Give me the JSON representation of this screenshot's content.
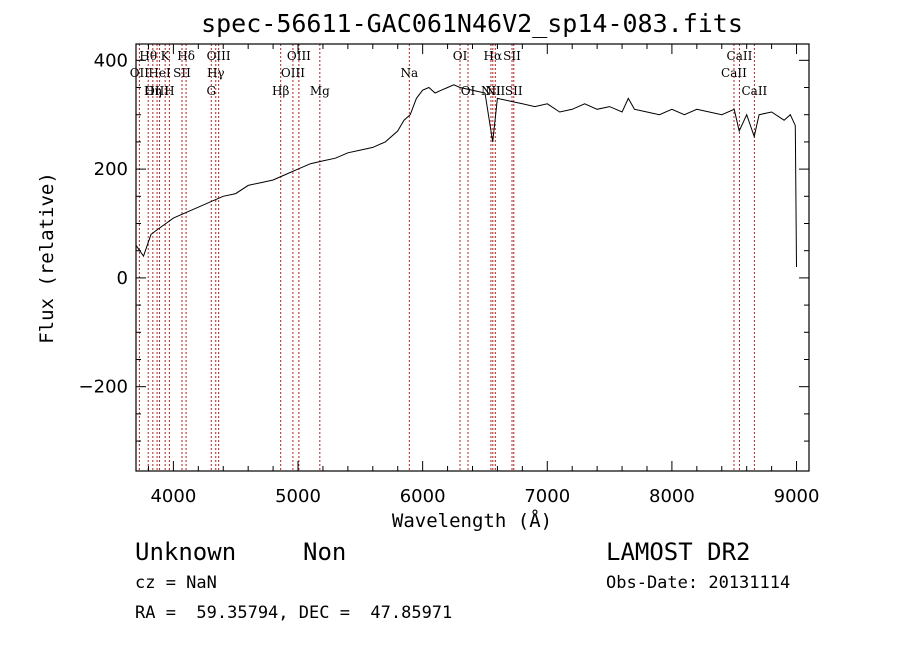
{
  "chart_data": {
    "type": "line",
    "title": "spec-56611-GAC061N46V2_sp14-083.fits",
    "xlabel": "Wavelength (Å)",
    "ylabel": "Flux (relative)",
    "xlim": [
      3700,
      9100
    ],
    "ylim": [
      -355,
      430
    ],
    "x_ticks": [
      4000,
      5000,
      6000,
      7000,
      8000,
      9000
    ],
    "y_ticks": [
      -200,
      0,
      200,
      400
    ],
    "grid": false,
    "line_color": "#000000",
    "marker_color": "#b22222",
    "series": [
      {
        "x": [
          3700,
          3760,
          3820,
          3880,
          3940,
          4000,
          4100,
          4200,
          4300,
          4400,
          4500,
          4600,
          4700,
          4800,
          4900,
          5000,
          5100,
          5200,
          5300,
          5400,
          5500,
          5600,
          5700,
          5800,
          5850,
          5900,
          5950,
          6000,
          6050,
          6100,
          6150,
          6200,
          6250,
          6300,
          6400,
          6500,
          6562,
          6600,
          6700,
          6800,
          6900,
          7000,
          7100,
          7200,
          7300,
          7400,
          7500,
          7600,
          7650,
          7700,
          7800,
          7900,
          8000,
          8100,
          8200,
          8300,
          8400,
          8500,
          8540,
          8600,
          8660,
          8700,
          8800,
          8900,
          8950,
          8990,
          9000
        ],
        "y": [
          60,
          40,
          80,
          90,
          100,
          110,
          120,
          130,
          140,
          150,
          155,
          170,
          175,
          180,
          190,
          200,
          210,
          215,
          220,
          230,
          235,
          240,
          250,
          270,
          290,
          300,
          330,
          345,
          350,
          340,
          345,
          350,
          355,
          350,
          345,
          340,
          250,
          330,
          325,
          320,
          315,
          320,
          305,
          310,
          320,
          310,
          315,
          305,
          330,
          310,
          305,
          300,
          310,
          300,
          310,
          305,
          300,
          310,
          270,
          300,
          260,
          300,
          305,
          290,
          300,
          280,
          20
        ]
      }
    ],
    "lines": [
      {
        "label": "Hθ",
        "x": 3798,
        "row": 0
      },
      {
        "label": "OII",
        "x": 3727,
        "row": 1
      },
      {
        "label": "OIII",
        "x": 3869,
        "row": 2
      },
      {
        "label": "K",
        "x": 3934,
        "row": 0
      },
      {
        "label": "HeI",
        "x": 3889,
        "row": 1
      },
      {
        "label": "SII",
        "x": 4069,
        "row": 1
      },
      {
        "label": "Hη",
        "x": 3835,
        "row": 2
      },
      {
        "label": "H",
        "x": 3968,
        "row": 2
      },
      {
        "label": "Hδ",
        "x": 4102,
        "row": 0
      },
      {
        "label": "OIII",
        "x": 4363,
        "row": 0
      },
      {
        "label": "Hγ",
        "x": 4340,
        "row": 1
      },
      {
        "label": "G",
        "x": 4304,
        "row": 2
      },
      {
        "label": "Hβ",
        "x": 4861,
        "row": 2
      },
      {
        "label": "OIII",
        "x": 5007,
        "row": 0
      },
      {
        "label": "OIII",
        "x": 4959,
        "row": 1
      },
      {
        "label": "Mg",
        "x": 5175,
        "row": 2
      },
      {
        "label": "Na",
        "x": 5893,
        "row": 1
      },
      {
        "label": "OI",
        "x": 6300,
        "row": 0
      },
      {
        "label": "OI",
        "x": 6364,
        "row": 2
      },
      {
        "label": "Hα",
        "x": 6563,
        "row": 0
      },
      {
        "label": "SII",
        "x": 6717,
        "row": 0
      },
      {
        "label": "NII",
        "x": 6548,
        "row": 2
      },
      {
        "label": "NII",
        "x": 6583,
        "row": 2
      },
      {
        "label": "SII",
        "x": 6731,
        "row": 2
      },
      {
        "label": "CaII",
        "x": 8542,
        "row": 0
      },
      {
        "label": "CaII",
        "x": 8498,
        "row": 1
      },
      {
        "label": "CaII",
        "x": 8662,
        "row": 2
      }
    ]
  },
  "info": {
    "class_label": "Unknown",
    "subclass_label": "Non",
    "survey": "LAMOST DR2",
    "cz": "cz = NaN",
    "obs_date": "Obs-Date: 20131114",
    "coords": "RA =  59.35794, DEC =  47.85971"
  }
}
